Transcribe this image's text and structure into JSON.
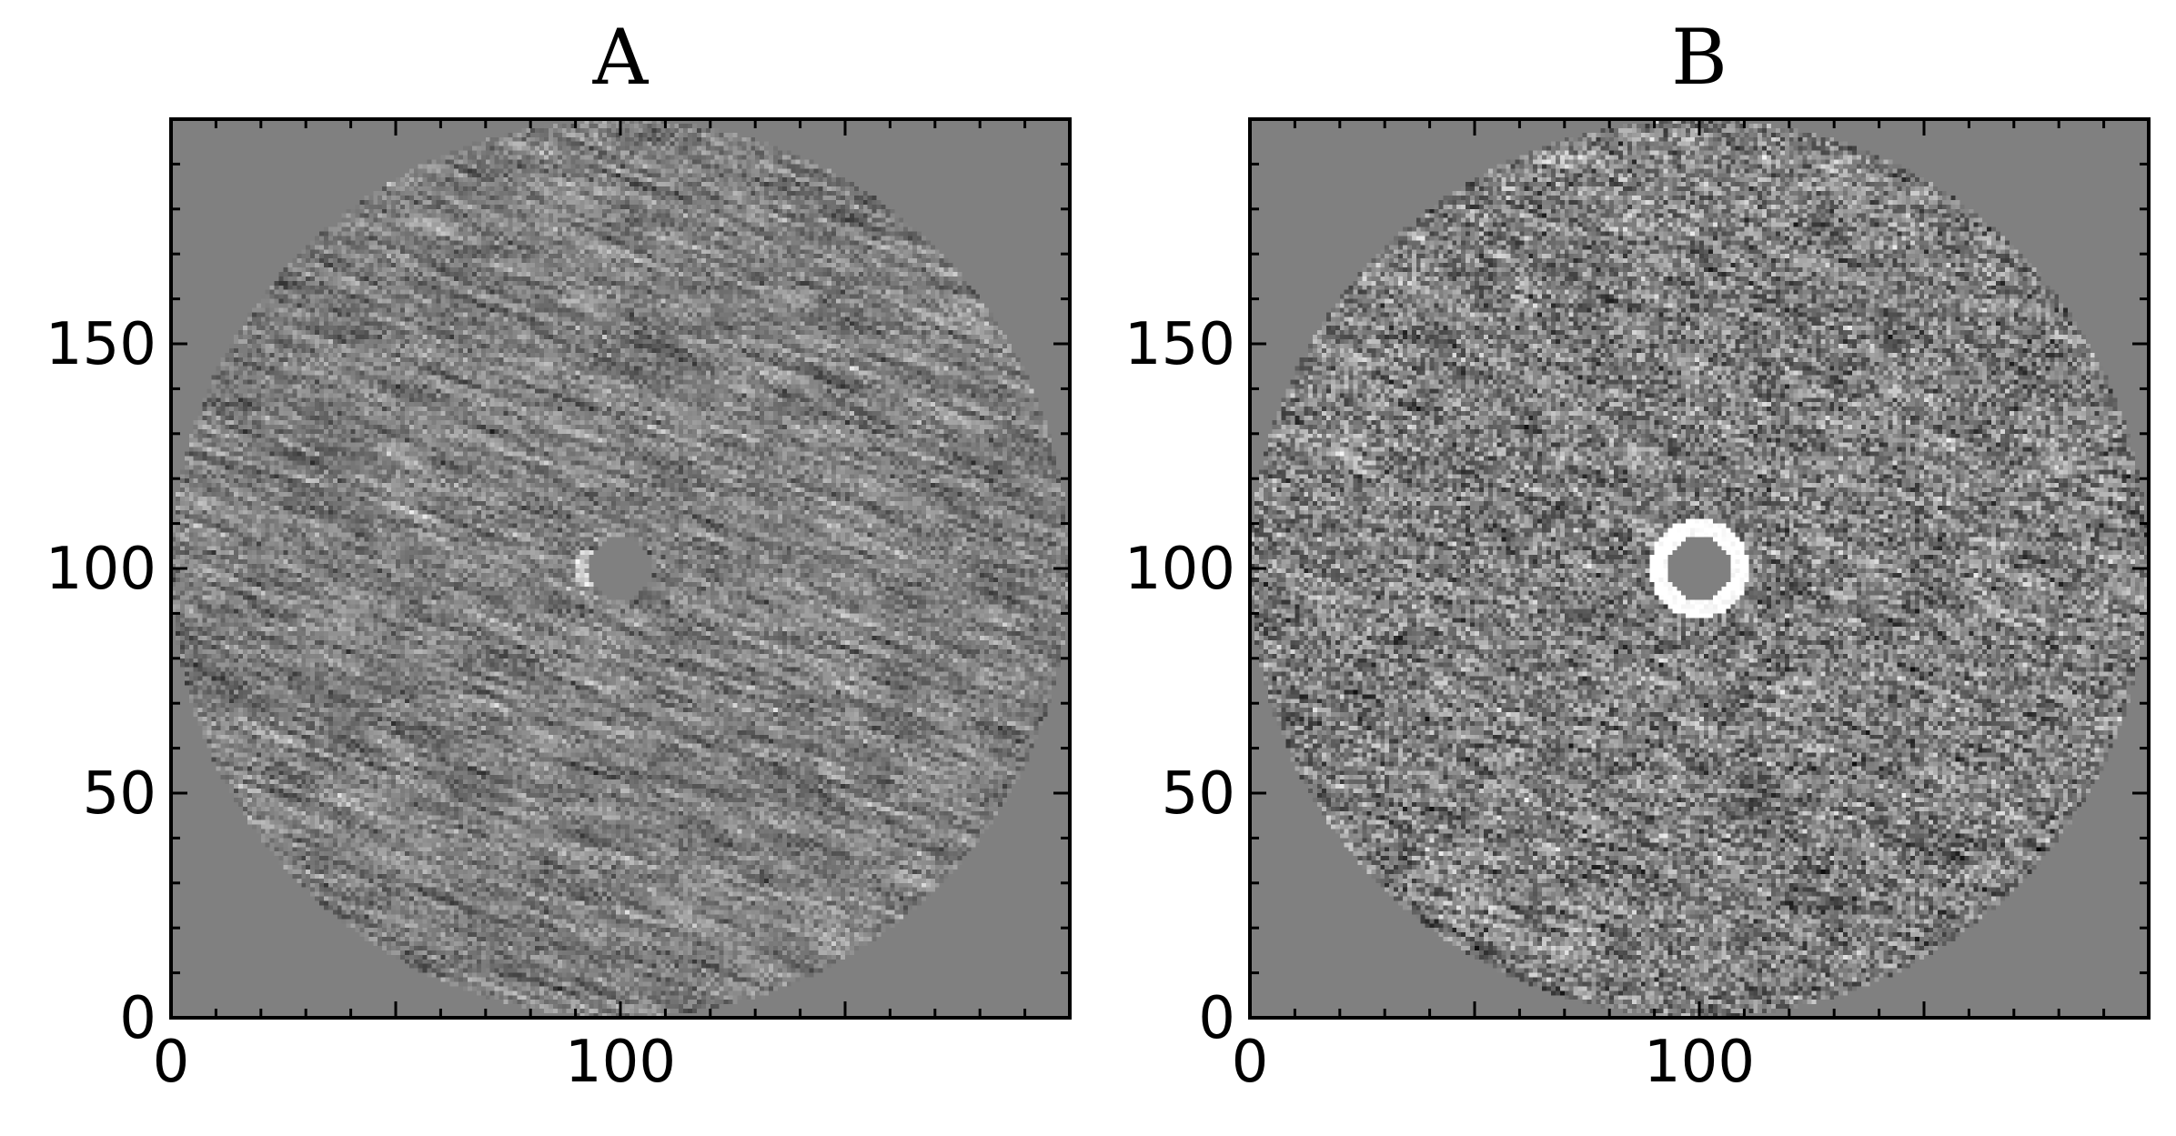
{
  "chart_data": [
    {
      "type": "heatmap",
      "title": "A",
      "xlabel": "",
      "ylabel": "",
      "xlim": [
        0,
        200
      ],
      "ylim": [
        0,
        200
      ],
      "x_ticks": [
        0,
        100
      ],
      "y_ticks": [
        0,
        50,
        100,
        150
      ],
      "colormap": "gray",
      "background_color": "#808080",
      "masked_region": {
        "center": [
          100,
          100
        ],
        "outer_radius": 100,
        "inner_radius": 7
      },
      "texture": {
        "streak_angle_deg": 20,
        "bright_inner_ring": false
      }
    },
    {
      "type": "heatmap",
      "title": "B",
      "xlabel": "",
      "ylabel": "",
      "xlim": [
        0,
        200
      ],
      "ylim": [
        0,
        200
      ],
      "x_ticks": [
        0,
        100
      ],
      "y_ticks": [
        0,
        50,
        100,
        150
      ],
      "colormap": "gray",
      "background_color": "#808080",
      "masked_region": {
        "center": [
          100,
          100
        ],
        "outer_radius": 100,
        "inner_radius": 7
      },
      "texture": {
        "streak_angle_deg": 15,
        "bright_inner_ring": true
      }
    }
  ]
}
